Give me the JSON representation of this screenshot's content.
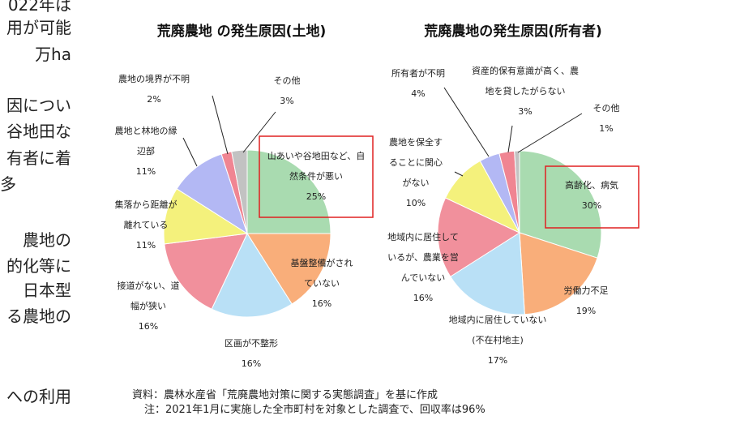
{
  "side_text": [
    "022年は",
    "用が可能",
    "万ha",
    "因につい",
    "谷地田な",
    "有者に着",
    "多",
    "農地の",
    "的化等に",
    "日本型",
    "る農地の",
    "への利用"
  ],
  "chart_data": [
    {
      "type": "pie",
      "title": "荒廃農地 の発生原因(土地)",
      "categories": [
        "山あいや谷地田など、自然条件が悪い",
        "基盤整備がされていない",
        "区画が不整形",
        "接道がない、道幅が狭い",
        "集落から距離が離れている",
        "農地と林地の縁辺部",
        "農地の境界が不明",
        "その他"
      ],
      "values": [
        25,
        16,
        16,
        16,
        11,
        11,
        2,
        3
      ],
      "value_labels": [
        "25%",
        "16%",
        "16%",
        "16%",
        "11%",
        "11%",
        "2%",
        "3%"
      ],
      "colors": [
        "#a9dbb0",
        "#f9ae7a",
        "#b9e0f6",
        "#f1909c",
        "#f4f17c",
        "#b3b8f4",
        "#f08592",
        "#c2c2c2"
      ]
    },
    {
      "type": "pie",
      "title": "荒廃農地の発生原因(所有者)",
      "categories": [
        "高齢化、病気",
        "労働力不足",
        "地域内に居住していない(不在村地主)",
        "地域内に居住しているが、農業を営んでいない",
        "農地を保全することに関心がない",
        "所有者が不明",
        "資産的保有意識が高く、農地を貸したがらない",
        "その他"
      ],
      "values": [
        30,
        19,
        17,
        16,
        10,
        4,
        3,
        1
      ],
      "value_labels": [
        "30%",
        "19%",
        "17%",
        "16%",
        "10%",
        "4%",
        "3%",
        "1%"
      ],
      "colors": [
        "#a9dbb0",
        "#f9ae7a",
        "#b9e0f6",
        "#f1909c",
        "#f4f17c",
        "#b3b8f4",
        "#f08592",
        "#c2c2c2"
      ]
    }
  ],
  "source": "資料：農林水産省「荒廃農地対策に関する実態調査」を基に作成",
  "note": "注：2021年1月に実施した全市町村を対象とした調査で、回収率は96%"
}
